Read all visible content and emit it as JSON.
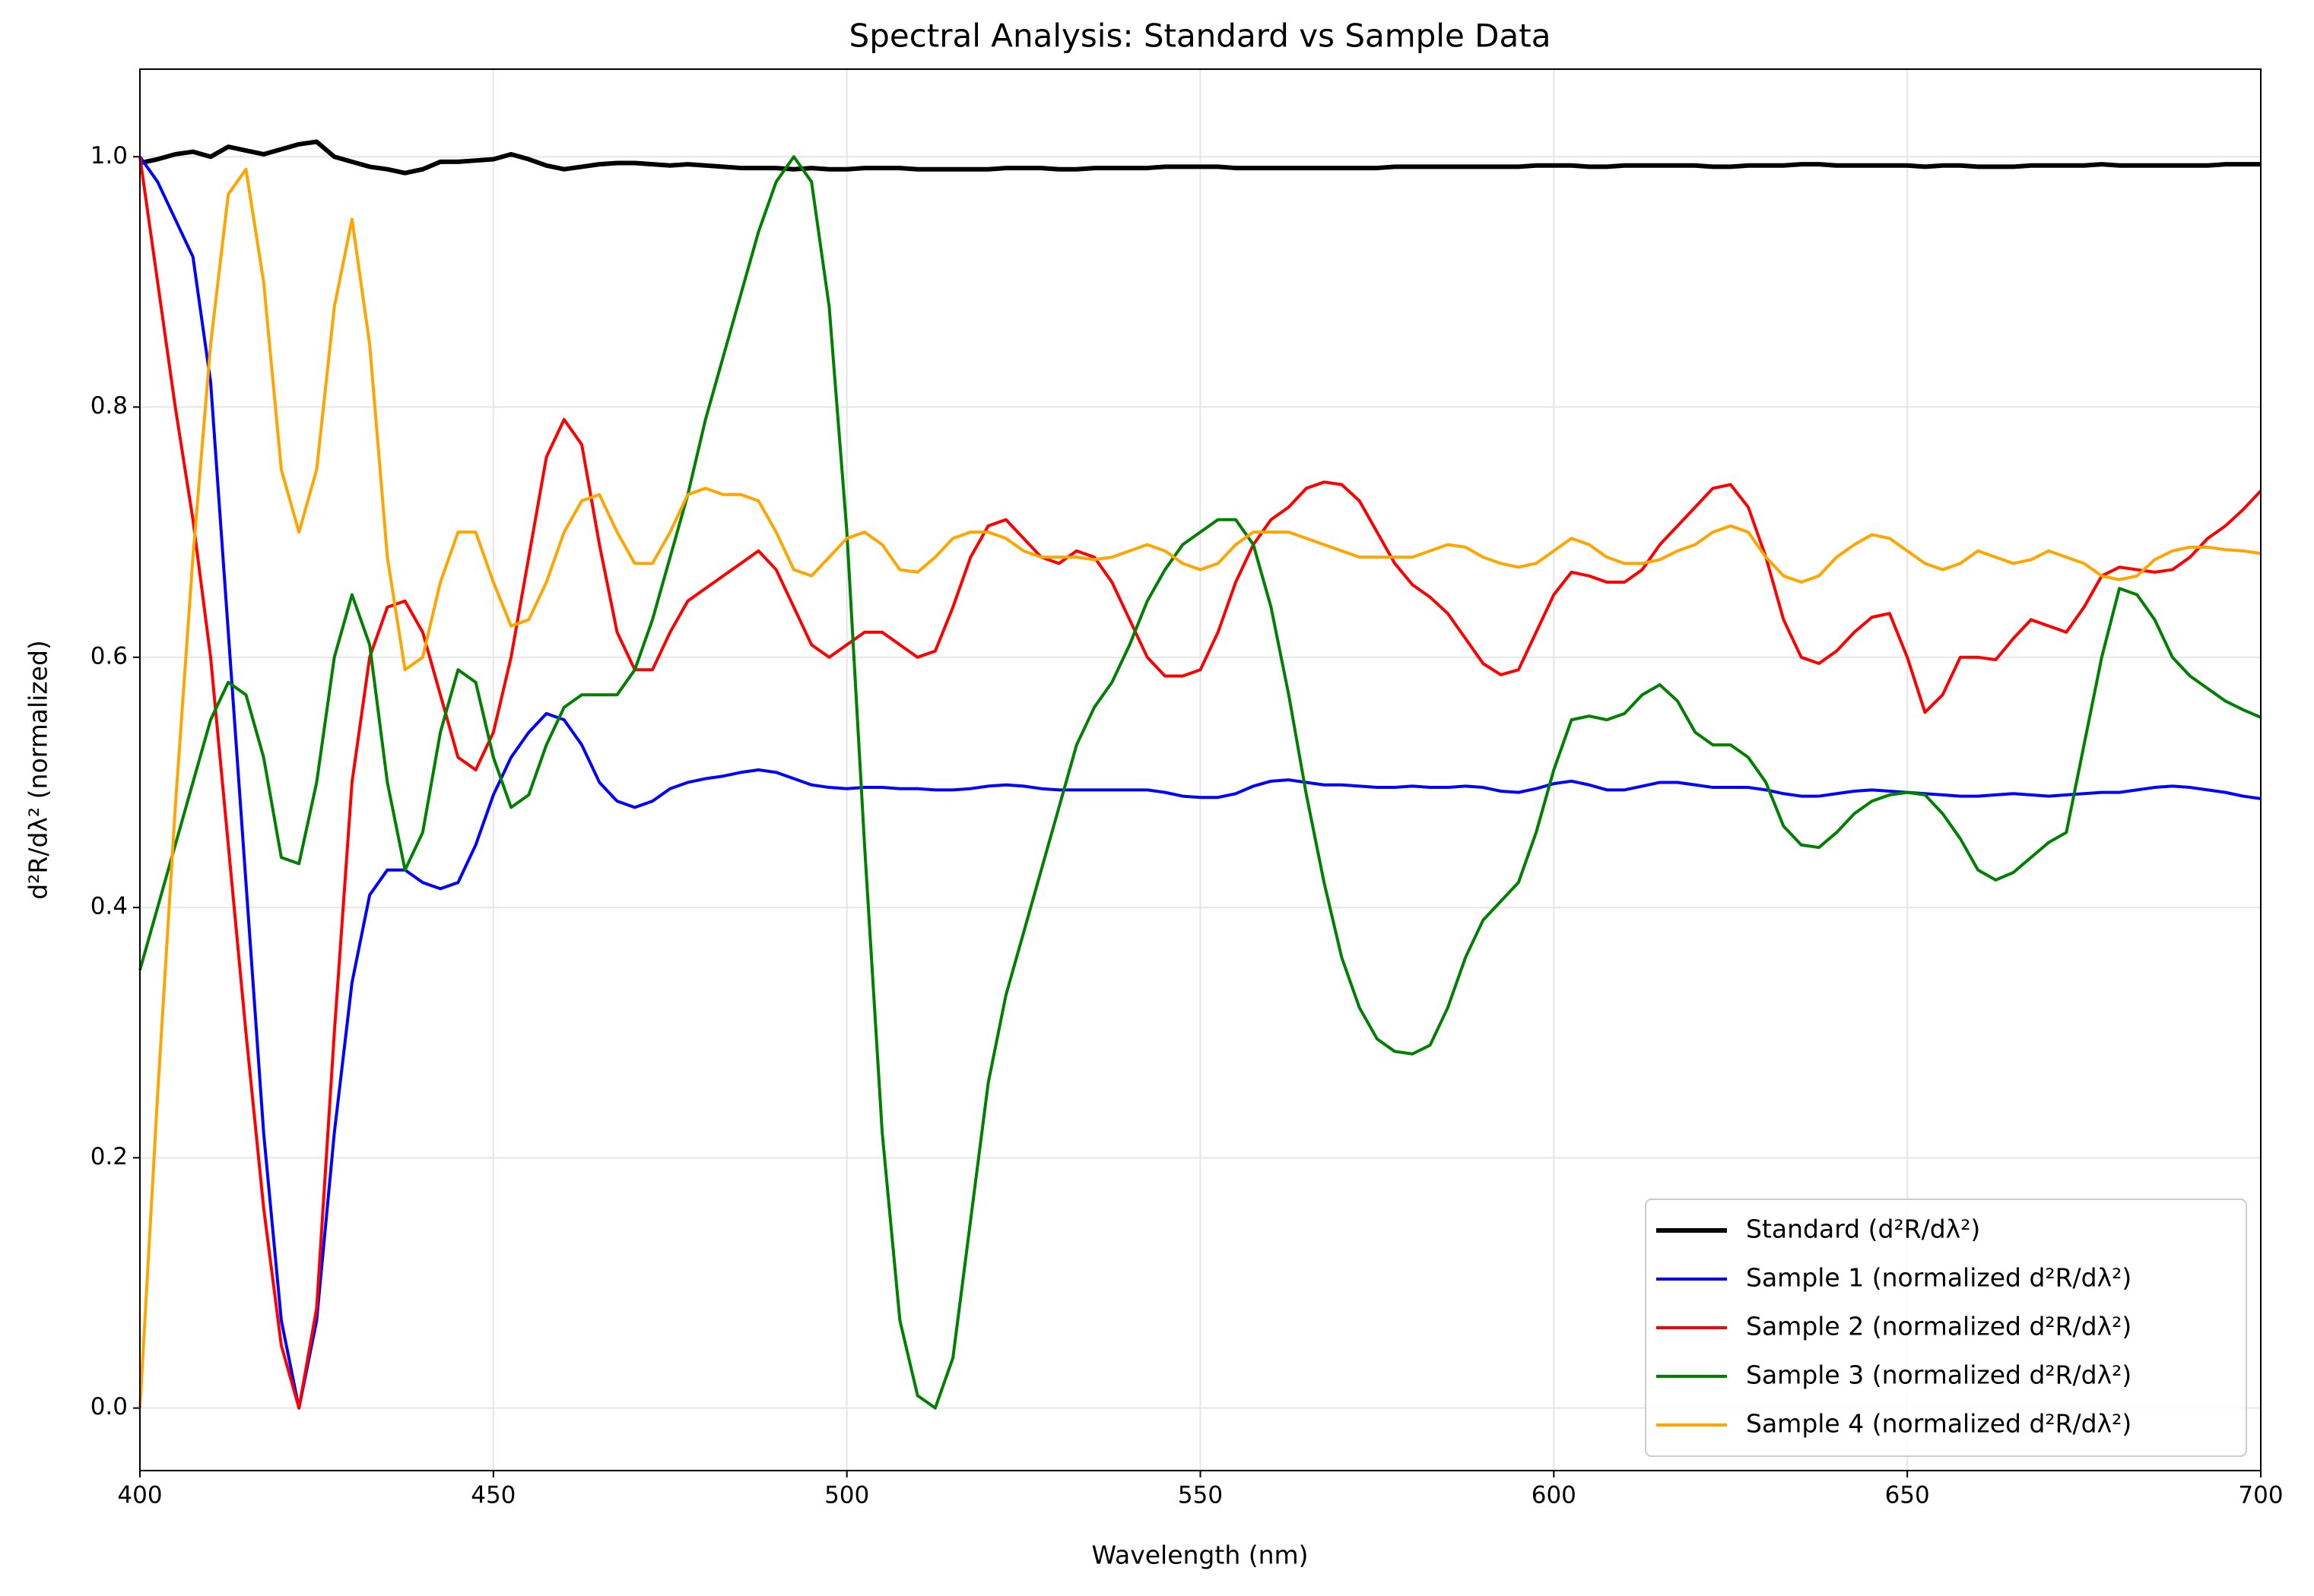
{
  "chart_data": {
    "type": "line",
    "title": "Spectral Analysis: Standard vs Sample Data",
    "x_label": "Wavelength (nm)",
    "y_label": "d²R/dλ² (normalized)",
    "xlim": [
      400,
      700
    ],
    "ylim": [
      -0.05,
      1.07
    ],
    "xticks": [
      400,
      450,
      500,
      550,
      600,
      650,
      700
    ],
    "yticks": [
      {
        "value": 0,
        "label": "0.0"
      },
      0.2,
      0.4,
      0.6,
      0.8,
      {
        "value": 1,
        "label": "1.0"
      }
    ],
    "grid": true,
    "legend": "lower right",
    "x": [
      400,
      402.5,
      405,
      407.5,
      410,
      412.5,
      415,
      417.5,
      420,
      422.5,
      425,
      427.5,
      430,
      432.5,
      435,
      437.5,
      440,
      442.5,
      445,
      447.5,
      450,
      452.5,
      455,
      457.5,
      460,
      462.5,
      465,
      467.5,
      470,
      472.5,
      475,
      477.5,
      480,
      482.5,
      485,
      487.5,
      490,
      492.5,
      495,
      497.5,
      500,
      502.5,
      505,
      507.5,
      510,
      512.5,
      515,
      517.5,
      520,
      522.5,
      525,
      527.5,
      530,
      532.5,
      535,
      537.5,
      540,
      542.5,
      545,
      547.5,
      550,
      552.5,
      555,
      557.5,
      560,
      562.5,
      565,
      567.5,
      570,
      572.5,
      575,
      577.5,
      580,
      582.5,
      585,
      587.5,
      590,
      592.5,
      595,
      597.5,
      600,
      602.5,
      605,
      607.5,
      610,
      612.5,
      615,
      617.5,
      620,
      622.5,
      625,
      627.5,
      630,
      632.5,
      635,
      637.5,
      640,
      642.5,
      645,
      647.5,
      650,
      652.5,
      655,
      657.5,
      660,
      662.5,
      665,
      667.5,
      670,
      672.5,
      675,
      677.5,
      680,
      682.5,
      685,
      687.5,
      690,
      692.5,
      695,
      697.5,
      700
    ],
    "series": [
      {
        "name": "Standard (d²R/dλ²)",
        "color": "#000000",
        "width": 6,
        "values": [
          0.995,
          0.998,
          1.002,
          1.004,
          1.0,
          1.008,
          1.005,
          1.002,
          1.006,
          1.01,
          1.012,
          1.0,
          0.996,
          0.992,
          0.99,
          0.987,
          0.99,
          0.996,
          0.996,
          0.997,
          0.998,
          1.002,
          0.998,
          0.993,
          0.99,
          0.992,
          0.994,
          0.995,
          0.995,
          0.994,
          0.993,
          0.994,
          0.993,
          0.992,
          0.991,
          0.991,
          0.991,
          0.99,
          0.991,
          0.99,
          0.99,
          0.991,
          0.991,
          0.991,
          0.99,
          0.99,
          0.99,
          0.99,
          0.99,
          0.991,
          0.991,
          0.991,
          0.99,
          0.99,
          0.991,
          0.991,
          0.991,
          0.991,
          0.992,
          0.992,
          0.992,
          0.992,
          0.991,
          0.991,
          0.991,
          0.991,
          0.991,
          0.991,
          0.991,
          0.991,
          0.991,
          0.992,
          0.992,
          0.992,
          0.992,
          0.992,
          0.992,
          0.992,
          0.992,
          0.993,
          0.993,
          0.993,
          0.992,
          0.992,
          0.993,
          0.993,
          0.993,
          0.993,
          0.993,
          0.992,
          0.992,
          0.993,
          0.993,
          0.993,
          0.994,
          0.994,
          0.993,
          0.993,
          0.993,
          0.993,
          0.993,
          0.992,
          0.993,
          0.993,
          0.992,
          0.992,
          0.992,
          0.993,
          0.993,
          0.993,
          0.993,
          0.994,
          0.993,
          0.993,
          0.993,
          0.993,
          0.993,
          0.993,
          0.994,
          0.994,
          0.994
        ]
      },
      {
        "name": "Sample 1 (normalized d²R/dλ²)",
        "color": "#0000ff",
        "width": 4,
        "values": [
          1.0,
          0.98,
          0.95,
          0.92,
          0.82,
          0.62,
          0.42,
          0.22,
          0.07,
          0.0,
          0.07,
          0.22,
          0.34,
          0.41,
          0.43,
          0.43,
          0.42,
          0.415,
          0.42,
          0.45,
          0.49,
          0.52,
          0.54,
          0.555,
          0.55,
          0.53,
          0.5,
          0.485,
          0.48,
          0.485,
          0.495,
          0.5,
          0.503,
          0.505,
          0.508,
          0.51,
          0.508,
          0.503,
          0.498,
          0.496,
          0.495,
          0.496,
          0.496,
          0.495,
          0.495,
          0.494,
          0.494,
          0.495,
          0.497,
          0.498,
          0.497,
          0.495,
          0.494,
          0.494,
          0.494,
          0.494,
          0.494,
          0.494,
          0.492,
          0.489,
          0.488,
          0.488,
          0.491,
          0.497,
          0.501,
          0.502,
          0.5,
          0.498,
          0.498,
          0.497,
          0.496,
          0.496,
          0.497,
          0.496,
          0.496,
          0.497,
          0.496,
          0.493,
          0.492,
          0.495,
          0.499,
          0.501,
          0.498,
          0.494,
          0.494,
          0.497,
          0.5,
          0.5,
          0.498,
          0.496,
          0.496,
          0.496,
          0.494,
          0.491,
          0.489,
          0.489,
          0.491,
          0.493,
          0.494,
          0.493,
          0.492,
          0.491,
          0.49,
          0.489,
          0.489,
          0.49,
          0.491,
          0.49,
          0.489,
          0.49,
          0.491,
          0.492,
          0.492,
          0.494,
          0.496,
          0.497,
          0.496,
          0.494,
          0.492,
          0.489,
          0.487
        ]
      },
      {
        "name": "Sample 2 (normalized d²R/dλ²)",
        "color": "#ff0000",
        "width": 4,
        "values": [
          1.0,
          0.9,
          0.8,
          0.71,
          0.6,
          0.45,
          0.3,
          0.16,
          0.05,
          0.0,
          0.08,
          0.3,
          0.5,
          0.6,
          0.64,
          0.645,
          0.62,
          0.57,
          0.52,
          0.51,
          0.54,
          0.6,
          0.68,
          0.76,
          0.79,
          0.77,
          0.69,
          0.62,
          0.59,
          0.59,
          0.62,
          0.645,
          0.655,
          0.665,
          0.675,
          0.685,
          0.67,
          0.64,
          0.61,
          0.6,
          0.61,
          0.62,
          0.62,
          0.61,
          0.6,
          0.605,
          0.64,
          0.68,
          0.705,
          0.71,
          0.695,
          0.68,
          0.675,
          0.685,
          0.68,
          0.66,
          0.63,
          0.6,
          0.585,
          0.585,
          0.59,
          0.62,
          0.66,
          0.69,
          0.71,
          0.72,
          0.735,
          0.74,
          0.738,
          0.725,
          0.7,
          0.675,
          0.658,
          0.648,
          0.635,
          0.615,
          0.595,
          0.586,
          0.59,
          0.62,
          0.65,
          0.668,
          0.665,
          0.66,
          0.66,
          0.67,
          0.69,
          0.705,
          0.72,
          0.735,
          0.738,
          0.72,
          0.68,
          0.63,
          0.6,
          0.595,
          0.605,
          0.62,
          0.632,
          0.635,
          0.6,
          0.556,
          0.57,
          0.6,
          0.6,
          0.598,
          0.615,
          0.63,
          0.625,
          0.62,
          0.64,
          0.665,
          0.672,
          0.67,
          0.668,
          0.67,
          0.68,
          0.695,
          0.705,
          0.718,
          0.733
        ]
      },
      {
        "name": "Sample 3 (normalized d²R/dλ²)",
        "color": "#008000",
        "width": 4,
        "values": [
          0.35,
          0.4,
          0.45,
          0.5,
          0.55,
          0.58,
          0.57,
          0.52,
          0.44,
          0.435,
          0.5,
          0.6,
          0.65,
          0.61,
          0.5,
          0.43,
          0.46,
          0.54,
          0.59,
          0.58,
          0.52,
          0.48,
          0.49,
          0.53,
          0.56,
          0.57,
          0.57,
          0.57,
          0.59,
          0.63,
          0.68,
          0.73,
          0.79,
          0.84,
          0.89,
          0.94,
          0.98,
          1.0,
          0.98,
          0.88,
          0.7,
          0.45,
          0.22,
          0.07,
          0.01,
          0.0,
          0.04,
          0.15,
          0.26,
          0.33,
          0.38,
          0.43,
          0.48,
          0.53,
          0.56,
          0.58,
          0.61,
          0.645,
          0.67,
          0.69,
          0.7,
          0.71,
          0.71,
          0.69,
          0.64,
          0.57,
          0.49,
          0.42,
          0.36,
          0.32,
          0.295,
          0.285,
          0.283,
          0.29,
          0.32,
          0.36,
          0.39,
          0.405,
          0.42,
          0.46,
          0.51,
          0.55,
          0.553,
          0.55,
          0.555,
          0.57,
          0.578,
          0.565,
          0.54,
          0.53,
          0.53,
          0.52,
          0.5,
          0.465,
          0.45,
          0.448,
          0.46,
          0.475,
          0.485,
          0.49,
          0.492,
          0.49,
          0.475,
          0.455,
          0.43,
          0.422,
          0.428,
          0.44,
          0.452,
          0.46,
          0.53,
          0.6,
          0.655,
          0.65,
          0.63,
          0.6,
          0.585,
          0.575,
          0.565,
          0.558,
          0.552
        ]
      },
      {
        "name": "Sample 4 (normalized d²R/dλ²)",
        "color": "#ffa500",
        "width": 4,
        "values": [
          0.0,
          0.25,
          0.48,
          0.68,
          0.85,
          0.97,
          0.99,
          0.9,
          0.75,
          0.7,
          0.75,
          0.88,
          0.95,
          0.85,
          0.68,
          0.59,
          0.6,
          0.66,
          0.7,
          0.7,
          0.66,
          0.625,
          0.63,
          0.66,
          0.7,
          0.725,
          0.73,
          0.7,
          0.675,
          0.675,
          0.7,
          0.73,
          0.735,
          0.73,
          0.73,
          0.725,
          0.7,
          0.67,
          0.665,
          0.68,
          0.695,
          0.7,
          0.69,
          0.67,
          0.668,
          0.68,
          0.695,
          0.7,
          0.7,
          0.695,
          0.685,
          0.68,
          0.68,
          0.68,
          0.678,
          0.68,
          0.685,
          0.69,
          0.685,
          0.675,
          0.67,
          0.675,
          0.69,
          0.7,
          0.7,
          0.7,
          0.695,
          0.69,
          0.685,
          0.68,
          0.68,
          0.68,
          0.68,
          0.685,
          0.69,
          0.688,
          0.68,
          0.675,
          0.672,
          0.675,
          0.685,
          0.695,
          0.69,
          0.68,
          0.675,
          0.675,
          0.678,
          0.685,
          0.69,
          0.7,
          0.705,
          0.7,
          0.68,
          0.665,
          0.66,
          0.665,
          0.68,
          0.69,
          0.698,
          0.695,
          0.685,
          0.675,
          0.67,
          0.675,
          0.685,
          0.68,
          0.675,
          0.678,
          0.685,
          0.68,
          0.675,
          0.665,
          0.662,
          0.665,
          0.678,
          0.685,
          0.688,
          0.688,
          0.686,
          0.685,
          0.683
        ]
      }
    ]
  }
}
